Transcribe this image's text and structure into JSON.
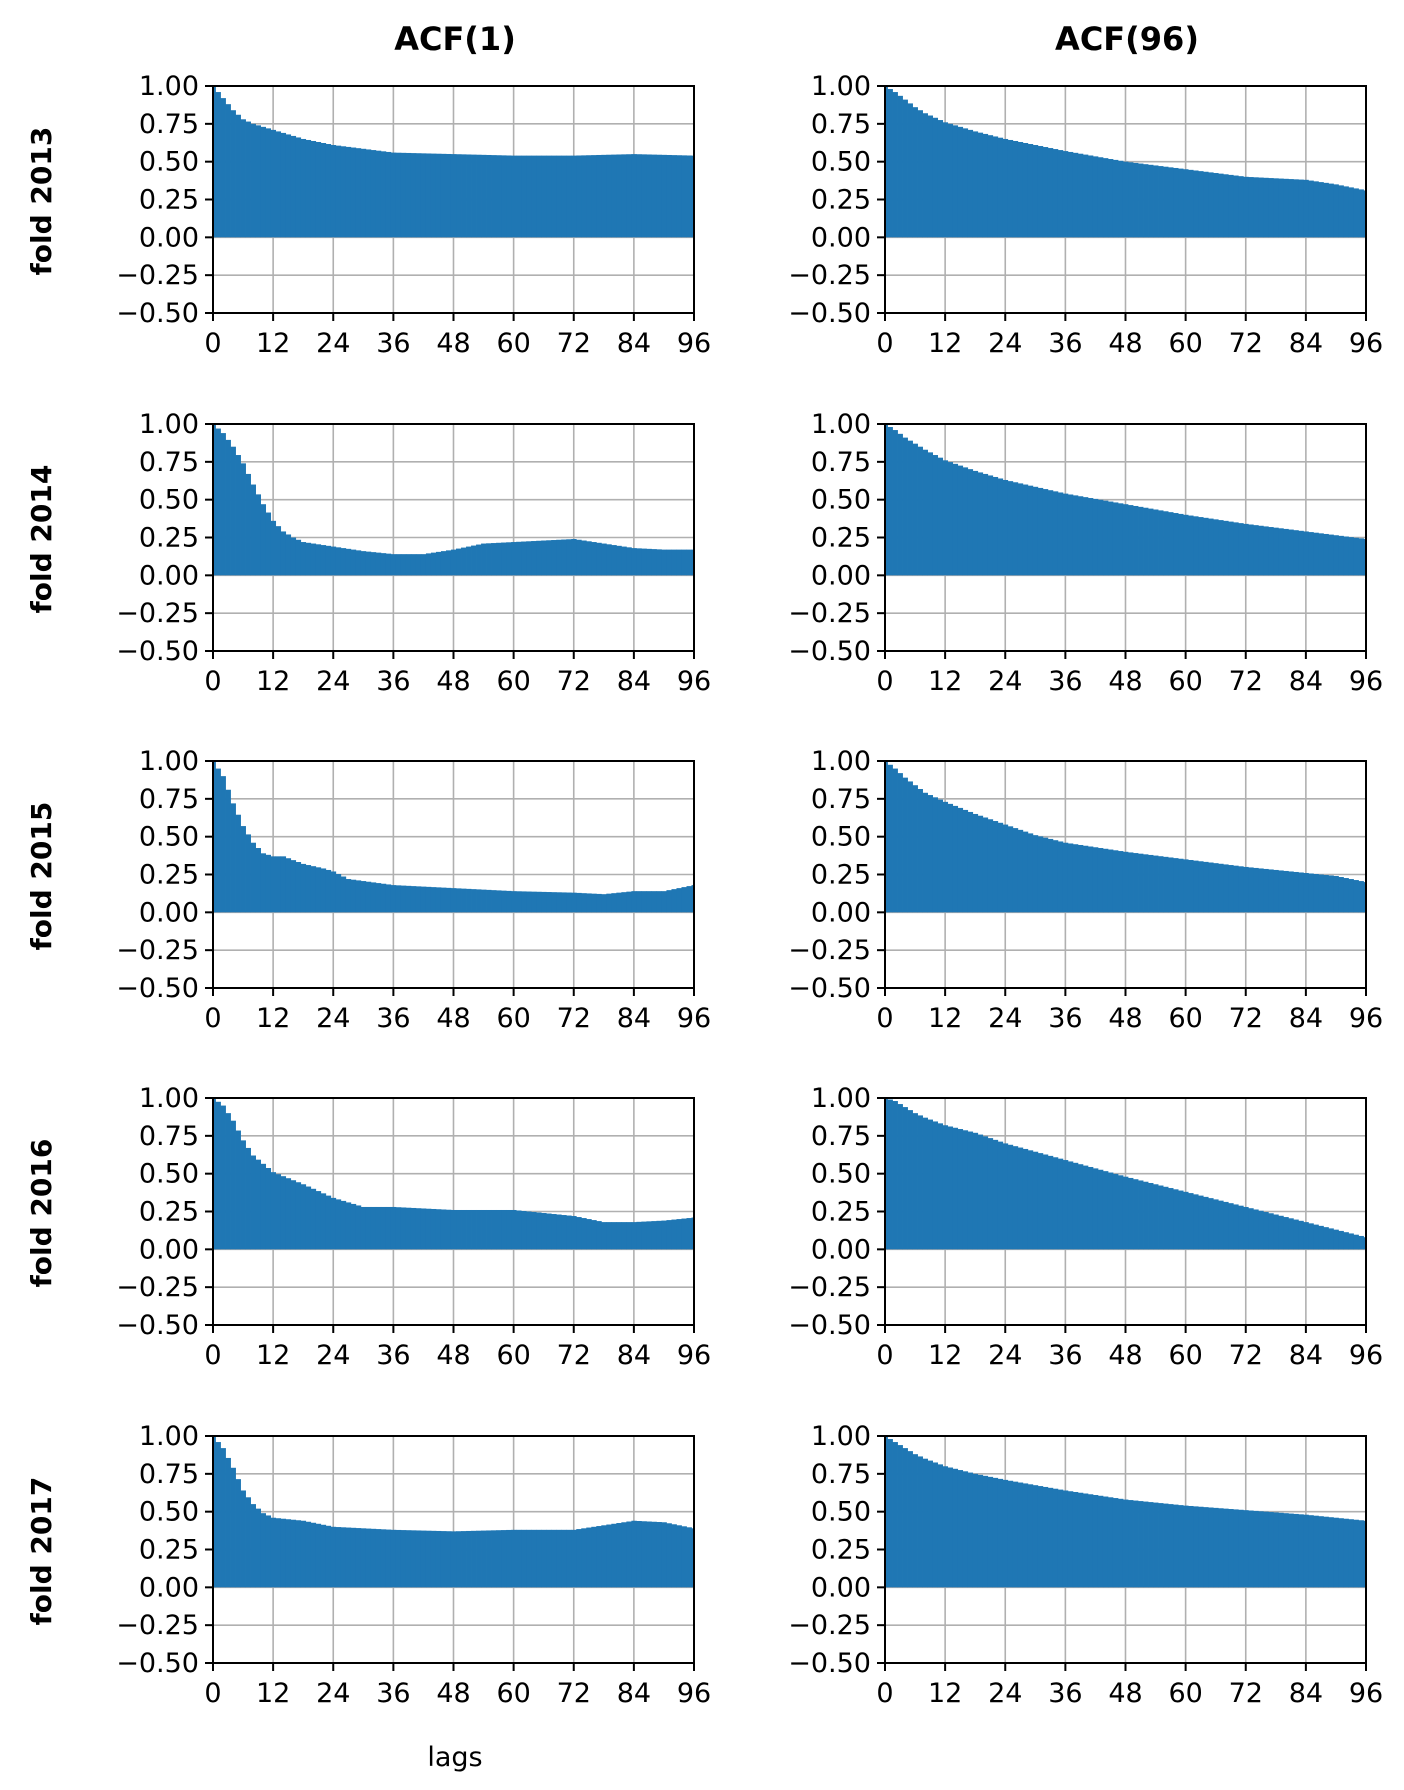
{
  "chart_data": {
    "type": "bar",
    "columns": [
      "ACF(1)",
      "ACF(96)"
    ],
    "rows": [
      "fold 2013",
      "fold 2014",
      "fold 2015",
      "fold 2016",
      "fold 2017"
    ],
    "xlabel": "lags",
    "xlim": [
      0,
      96
    ],
    "ylim": [
      -0.5,
      1.0
    ],
    "xticks": [
      "0",
      "12",
      "24",
      "36",
      "48",
      "60",
      "72",
      "84",
      "96"
    ],
    "yticks": [
      "1.00",
      "0.75",
      "0.50",
      "0.25",
      "0.00",
      "−0.25",
      "−0.50"
    ],
    "grid": true,
    "bar_color": "#1f77b4",
    "panels": [
      {
        "row": "fold 2013",
        "column": "ACF(1)",
        "lags": [
          0,
          2,
          4,
          6,
          8,
          12,
          18,
          24,
          36,
          48,
          60,
          72,
          84,
          96
        ],
        "values": [
          1.0,
          0.92,
          0.84,
          0.78,
          0.75,
          0.71,
          0.65,
          0.61,
          0.56,
          0.55,
          0.54,
          0.54,
          0.55,
          0.54
        ]
      },
      {
        "row": "fold 2013",
        "column": "ACF(96)",
        "lags": [
          0,
          2,
          4,
          6,
          8,
          12,
          18,
          24,
          36,
          48,
          60,
          72,
          84,
          90,
          96
        ],
        "values": [
          1.0,
          0.96,
          0.91,
          0.86,
          0.82,
          0.76,
          0.7,
          0.65,
          0.57,
          0.5,
          0.45,
          0.4,
          0.38,
          0.35,
          0.31
        ]
      },
      {
        "row": "fold 2014",
        "column": "ACF(1)",
        "lags": [
          0,
          2,
          4,
          6,
          8,
          10,
          12,
          14,
          16,
          18,
          24,
          30,
          36,
          42,
          48,
          54,
          60,
          66,
          72,
          78,
          84,
          90,
          96
        ],
        "values": [
          1.0,
          0.94,
          0.85,
          0.74,
          0.6,
          0.47,
          0.36,
          0.29,
          0.25,
          0.22,
          0.19,
          0.16,
          0.14,
          0.14,
          0.17,
          0.21,
          0.22,
          0.23,
          0.24,
          0.21,
          0.18,
          0.17,
          0.17
        ]
      },
      {
        "row": "fold 2014",
        "column": "ACF(96)",
        "lags": [
          0,
          2,
          4,
          6,
          8,
          12,
          18,
          24,
          36,
          48,
          60,
          72,
          84,
          96
        ],
        "values": [
          1.0,
          0.96,
          0.91,
          0.87,
          0.83,
          0.76,
          0.69,
          0.63,
          0.54,
          0.47,
          0.4,
          0.34,
          0.29,
          0.24
        ]
      },
      {
        "row": "fold 2015",
        "column": "ACF(1)",
        "lags": [
          0,
          2,
          4,
          6,
          8,
          10,
          12,
          14,
          18,
          22,
          24,
          27,
          36,
          48,
          60,
          72,
          78,
          84,
          90,
          96
        ],
        "values": [
          1.0,
          0.9,
          0.72,
          0.57,
          0.46,
          0.39,
          0.37,
          0.37,
          0.32,
          0.29,
          0.27,
          0.22,
          0.18,
          0.16,
          0.14,
          0.13,
          0.12,
          0.14,
          0.14,
          0.18
        ]
      },
      {
        "row": "fold 2015",
        "column": "ACF(96)",
        "lags": [
          0,
          2,
          4,
          6,
          8,
          12,
          18,
          24,
          30,
          36,
          48,
          60,
          72,
          84,
          90,
          96
        ],
        "values": [
          1.0,
          0.95,
          0.89,
          0.84,
          0.79,
          0.73,
          0.65,
          0.58,
          0.51,
          0.46,
          0.4,
          0.35,
          0.3,
          0.26,
          0.24,
          0.2
        ]
      },
      {
        "row": "fold 2016",
        "column": "ACF(1)",
        "lags": [
          0,
          2,
          4,
          6,
          8,
          12,
          18,
          24,
          30,
          36,
          48,
          60,
          66,
          72,
          78,
          84,
          90,
          96
        ],
        "values": [
          1.0,
          0.95,
          0.85,
          0.72,
          0.62,
          0.51,
          0.43,
          0.34,
          0.28,
          0.28,
          0.26,
          0.26,
          0.24,
          0.22,
          0.18,
          0.18,
          0.19,
          0.21
        ]
      },
      {
        "row": "fold 2016",
        "column": "ACF(96)",
        "lags": [
          0,
          2,
          4,
          6,
          8,
          12,
          18,
          24,
          36,
          48,
          60,
          72,
          84,
          96
        ],
        "values": [
          1.0,
          0.98,
          0.94,
          0.9,
          0.87,
          0.82,
          0.77,
          0.7,
          0.59,
          0.48,
          0.38,
          0.28,
          0.18,
          0.08
        ]
      },
      {
        "row": "fold 2017",
        "column": "ACF(1)",
        "lags": [
          0,
          2,
          4,
          6,
          8,
          10,
          12,
          18,
          24,
          36,
          48,
          60,
          72,
          78,
          84,
          90,
          96
        ],
        "values": [
          1.0,
          0.92,
          0.79,
          0.64,
          0.55,
          0.49,
          0.46,
          0.44,
          0.4,
          0.38,
          0.37,
          0.38,
          0.38,
          0.41,
          0.44,
          0.43,
          0.39
        ]
      },
      {
        "row": "fold 2017",
        "column": "ACF(96)",
        "lags": [
          0,
          2,
          4,
          6,
          8,
          12,
          18,
          24,
          36,
          48,
          60,
          72,
          84,
          96
        ],
        "values": [
          1.0,
          0.96,
          0.92,
          0.88,
          0.85,
          0.8,
          0.75,
          0.71,
          0.64,
          0.58,
          0.54,
          0.51,
          0.48,
          0.44
        ]
      }
    ]
  }
}
